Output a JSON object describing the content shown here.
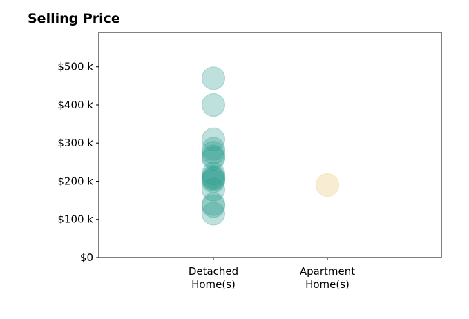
{
  "chart_data": {
    "type": "scatter",
    "title": "Selling Price",
    "xlabel": "",
    "ylabel": "",
    "categories": [
      "Detached\nHome(s)",
      "Apartment\nHome(s)"
    ],
    "ylim": [
      0,
      590000
    ],
    "yticks": [
      0,
      100000,
      200000,
      300000,
      400000,
      500000
    ],
    "ytick_labels": [
      "$0",
      "$100 k",
      "$200 k",
      "$300 k",
      "$400 k",
      "$500 k"
    ],
    "grid": false,
    "series": [
      {
        "category": "Detached\nHome(s)",
        "color": "#2a9d8f",
        "values": [
          470000,
          400000,
          310000,
          285000,
          275000,
          265000,
          260000,
          220000,
          212000,
          208000,
          205000,
          200000,
          178000,
          140000,
          135000,
          115000
        ]
      },
      {
        "category": "Apartment\nHome(s)",
        "color": "#e9c46a",
        "values": [
          190000
        ]
      }
    ]
  }
}
